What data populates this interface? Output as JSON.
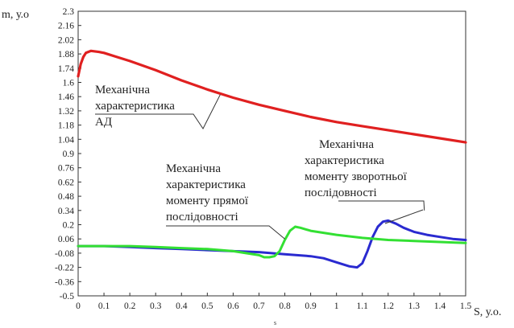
{
  "chart_data": {
    "type": "line",
    "ylabel": "m, у.о",
    "xlabel": "S, у.о.",
    "below_axis_mark": "s",
    "xlim": [
      0,
      1.5
    ],
    "ylim": [
      -0.5,
      2.3
    ],
    "xticks": [
      0,
      0.1,
      0.2,
      0.3,
      0.4,
      0.5,
      0.6,
      0.7,
      0.8,
      0.9,
      1,
      1.1,
      1.2,
      1.3,
      1.4,
      1.5
    ],
    "xtick_labels": [
      "0",
      "0.1",
      "0.2",
      "0.3",
      "0.4",
      "0.5",
      "0.6",
      "0.7",
      "0.8",
      "0.9",
      "1",
      "1.1",
      "1.2",
      "1.3",
      "1.4",
      "1.5"
    ],
    "yticks": [
      2.3,
      2.16,
      2.02,
      1.88,
      1.74,
      1.6,
      1.46,
      1.32,
      1.18,
      1.04,
      0.9,
      0.76,
      0.62,
      0.48,
      0.34,
      0.2,
      0.06,
      -0.08,
      -0.22,
      -0.36,
      -0.5
    ],
    "ytick_labels": [
      "2.3",
      "2.16",
      "2.02",
      "1.88",
      "1.74",
      "1.6",
      "1.46",
      "1.32",
      "1.18",
      "1.04",
      "0.9",
      "0.76",
      "0.62",
      "0.48",
      "0.34",
      "0.2",
      "0.06",
      "-0.08",
      "-0.22",
      "-0.36",
      "-0.5"
    ],
    "grid": false,
    "series": [
      {
        "color": "#e02020",
        "x": [
          0,
          0.01,
          0.02,
          0.03,
          0.05,
          0.08,
          0.1,
          0.15,
          0.2,
          0.3,
          0.4,
          0.5,
          0.6,
          0.7,
          0.8,
          0.9,
          1.0,
          1.1,
          1.2,
          1.3,
          1.4,
          1.5
        ],
        "y": [
          1.66,
          1.78,
          1.85,
          1.89,
          1.91,
          1.9,
          1.89,
          1.85,
          1.81,
          1.72,
          1.62,
          1.53,
          1.45,
          1.38,
          1.32,
          1.26,
          1.21,
          1.17,
          1.13,
          1.09,
          1.05,
          1.01
        ]
      },
      {
        "color": "#2a2ad0",
        "x": [
          0,
          0.1,
          0.2,
          0.3,
          0.4,
          0.5,
          0.6,
          0.7,
          0.8,
          0.9,
          0.95,
          1.0,
          1.05,
          1.08,
          1.1,
          1.12,
          1.14,
          1.16,
          1.18,
          1.2,
          1.23,
          1.26,
          1.3,
          1.35,
          1.4,
          1.45,
          1.5
        ],
        "y": [
          -0.01,
          -0.01,
          -0.02,
          -0.03,
          -0.04,
          -0.05,
          -0.06,
          -0.07,
          -0.09,
          -0.11,
          -0.13,
          -0.17,
          -0.21,
          -0.22,
          -0.18,
          -0.06,
          0.08,
          0.18,
          0.23,
          0.24,
          0.21,
          0.17,
          0.13,
          0.1,
          0.08,
          0.06,
          0.05
        ]
      },
      {
        "color": "#33e033",
        "x": [
          0,
          0.1,
          0.2,
          0.3,
          0.4,
          0.5,
          0.6,
          0.65,
          0.7,
          0.72,
          0.74,
          0.76,
          0.78,
          0.8,
          0.82,
          0.84,
          0.86,
          0.9,
          1.0,
          1.1,
          1.2,
          1.3,
          1.4,
          1.5
        ],
        "y": [
          -0.01,
          -0.01,
          -0.01,
          -0.02,
          -0.03,
          -0.04,
          -0.06,
          -0.08,
          -0.1,
          -0.12,
          -0.12,
          -0.11,
          -0.06,
          0.05,
          0.14,
          0.18,
          0.17,
          0.14,
          0.1,
          0.07,
          0.05,
          0.04,
          0.03,
          0.02
        ]
      }
    ],
    "annotations": [
      {
        "lines": [
          "Механічна",
          "характеристика",
          "АД"
        ],
        "target": [
          0.55,
          1.48
        ]
      },
      {
        "lines": [
          "Механічна",
          "характеристика",
          "моменту прямої",
          "послідовності"
        ],
        "target": [
          0.8,
          0.06
        ]
      },
      {
        "lines": [
          "Механічна",
          "характеристика",
          "моменту зворотньої",
          "послідовності"
        ],
        "target": [
          1.34,
          0.34
        ]
      }
    ]
  }
}
